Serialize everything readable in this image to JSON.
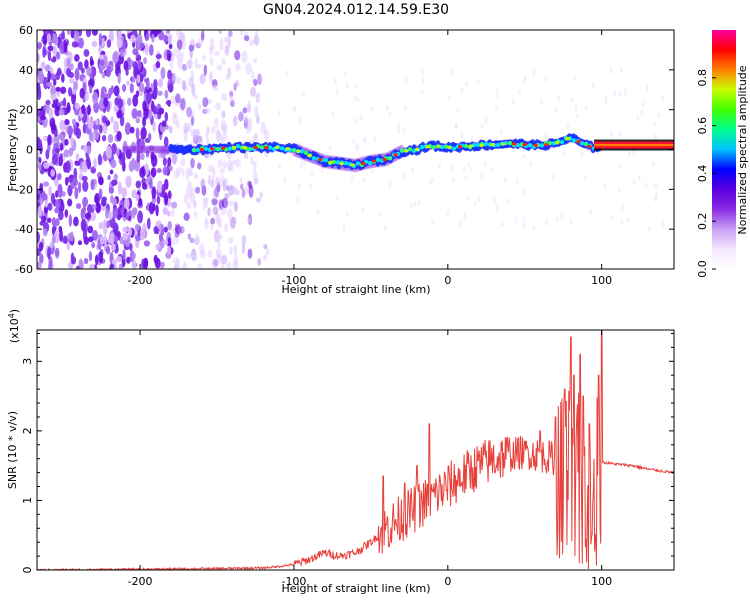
{
  "title": "GN04.2024.012.14.59.E30",
  "colors": {
    "snr_line": "#e8413c",
    "colorbar_stops": [
      "#ffffff",
      "#f3e6ff",
      "#c9a0f5",
      "#8a2be2",
      "#5a00e0",
      "#0000ff",
      "#00c0ff",
      "#00ff90",
      "#40ff00",
      "#c8ff00",
      "#ff8000",
      "#ff0000",
      "#ff00a0"
    ]
  },
  "chart_data": [
    {
      "type": "heatmap",
      "xlabel": "Height of straight line (km)",
      "ylabel": "Frequency (Hz)",
      "xlim": [
        -267,
        147
      ],
      "ylim": [
        -60,
        60
      ],
      "x_ticks": [
        -200,
        -100,
        0,
        100
      ],
      "y_ticks": [
        -60,
        -40,
        -20,
        0,
        20,
        40,
        60
      ],
      "colorbar": {
        "label": "Normalized spectral amplitude",
        "range": [
          0,
          1
        ],
        "ticks": [
          0.0,
          0.2,
          0.4,
          0.6,
          0.8
        ],
        "tick_labels": [
          "0.0",
          "0.2",
          "0.4",
          "0.6",
          "0.8"
        ]
      },
      "ridge": {
        "x": [
          -200,
          -170,
          -160,
          -140,
          -120,
          -110,
          -100,
          -90,
          -80,
          -70,
          -60,
          -50,
          -40,
          -30,
          -20,
          -10,
          0,
          20,
          40,
          60,
          70,
          80,
          85,
          90,
          95,
          100,
          147
        ],
        "y": [
          0,
          0,
          0,
          1,
          1,
          1,
          0,
          -3,
          -6,
          -7,
          -8,
          -6,
          -5,
          -1,
          0,
          2,
          1,
          2,
          3,
          2,
          3,
          6,
          4,
          2,
          1,
          2,
          2
        ]
      }
    },
    {
      "type": "line",
      "xlabel": "Height of straight line (km)",
      "ylabel": "SNR (10 * v/v)",
      "exponent_label": "(x10",
      "exponent_power": "4",
      "exponent_close": ")",
      "xlim": [
        -267,
        147
      ],
      "ylim": [
        0,
        3.45
      ],
      "x_ticks": [
        -200,
        -100,
        0,
        100
      ],
      "y_ticks": [
        0,
        1,
        2,
        3
      ],
      "series": [
        {
          "values_envelope": {
            "x": [
              -267,
              -200,
              -150,
              -120,
              -110,
              -100,
              -90,
              -80,
              -70,
              -60,
              -50,
              -40,
              -30,
              -20,
              -10,
              0,
              10,
              20,
              30,
              40,
              50,
              60,
              70,
              80,
              90,
              100,
              110,
              120,
              130,
              147
            ],
            "y": [
              0.0,
              0.01,
              0.02,
              0.03,
              0.05,
              0.08,
              0.15,
              0.25,
              0.2,
              0.25,
              0.4,
              0.6,
              0.75,
              0.9,
              1.05,
              1.2,
              1.35,
              1.5,
              1.6,
              1.65,
              1.7,
              1.65,
              1.6,
              1.4,
              1.3,
              1.55,
              1.52,
              1.5,
              1.45,
              1.4
            ]
          },
          "peaks": {
            "x": [
              -42,
              -28,
              -20,
              -12,
              50,
              60,
              70,
              76,
              80,
              82,
              86,
              88,
              92,
              95,
              98,
              100
            ],
            "y": [
              1.35,
              1.25,
              1.5,
              2.1,
              1.85,
              2.0,
              2.2,
              2.6,
              3.35,
              2.8,
              3.1,
              2.5,
              2.1,
              1.6,
              2.8,
              3.5
            ]
          }
        }
      ]
    }
  ]
}
